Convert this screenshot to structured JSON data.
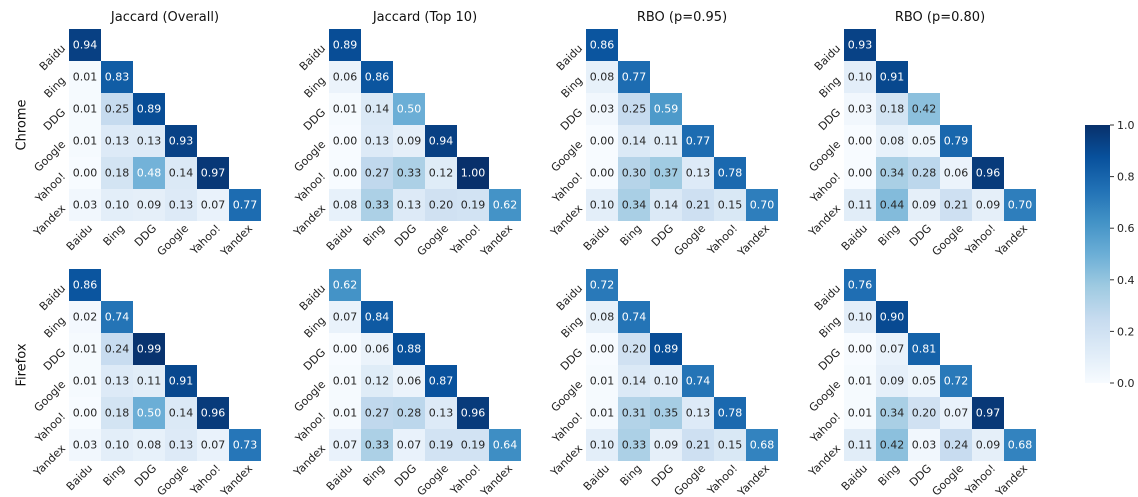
{
  "chart_data": {
    "type": "heatmap",
    "layout": "lower-triangular",
    "row_labels": [
      "Chrome",
      "Firefox"
    ],
    "panel_titles": [
      "Jaccard (Overall)",
      "Jaccard (Top 10)",
      "RBO (p=0.95)",
      "RBO (p=0.80)"
    ],
    "axis_labels": [
      "Baidu",
      "Bing",
      "DDG",
      "Google",
      "Yahoo!",
      "Yandex"
    ],
    "colorbar": {
      "min": 0.0,
      "max": 1.0,
      "ticks": [
        "0.0",
        "0.2",
        "0.4",
        "0.6",
        "0.8",
        "1.0"
      ],
      "colormap": "Blues"
    },
    "panels": [
      [
        [
          [
            0.94
          ],
          [
            0.01,
            0.83
          ],
          [
            0.01,
            0.25,
            0.89
          ],
          [
            0.01,
            0.13,
            0.13,
            0.93
          ],
          [
            0.0,
            0.18,
            0.48,
            0.14,
            0.97
          ],
          [
            0.03,
            0.1,
            0.09,
            0.13,
            0.07,
            0.77
          ]
        ],
        [
          [
            0.89
          ],
          [
            0.06,
            0.86
          ],
          [
            0.01,
            0.14,
            0.5
          ],
          [
            0.0,
            0.13,
            0.09,
            0.94
          ],
          [
            0.0,
            0.27,
            0.33,
            0.12,
            1.0
          ],
          [
            0.08,
            0.33,
            0.13,
            0.2,
            0.19,
            0.62
          ]
        ],
        [
          [
            0.86
          ],
          [
            0.08,
            0.77
          ],
          [
            0.03,
            0.25,
            0.59
          ],
          [
            0.0,
            0.14,
            0.11,
            0.77
          ],
          [
            0.0,
            0.3,
            0.37,
            0.13,
            0.78
          ],
          [
            0.1,
            0.34,
            0.14,
            0.21,
            0.15,
            0.7
          ]
        ],
        [
          [
            0.93
          ],
          [
            0.1,
            0.91
          ],
          [
            0.03,
            0.18,
            0.42
          ],
          [
            0.0,
            0.08,
            0.05,
            0.79
          ],
          [
            0.0,
            0.34,
            0.28,
            0.06,
            0.96
          ],
          [
            0.11,
            0.44,
            0.09,
            0.21,
            0.09,
            0.7
          ]
        ]
      ],
      [
        [
          [
            0.86
          ],
          [
            0.02,
            0.74
          ],
          [
            0.01,
            0.24,
            0.99
          ],
          [
            0.01,
            0.13,
            0.11,
            0.91
          ],
          [
            0.0,
            0.18,
            0.5,
            0.14,
            0.96
          ],
          [
            0.03,
            0.1,
            0.08,
            0.13,
            0.07,
            0.73
          ]
        ],
        [
          [
            0.62
          ],
          [
            0.07,
            0.84
          ],
          [
            0.0,
            0.06,
            0.88
          ],
          [
            0.01,
            0.12,
            0.06,
            0.87
          ],
          [
            0.01,
            0.27,
            0.28,
            0.13,
            0.96
          ],
          [
            0.07,
            0.33,
            0.07,
            0.19,
            0.19,
            0.64
          ]
        ],
        [
          [
            0.72
          ],
          [
            0.08,
            0.74
          ],
          [
            0.0,
            0.2,
            0.89
          ],
          [
            0.01,
            0.14,
            0.1,
            0.74
          ],
          [
            0.01,
            0.31,
            0.35,
            0.13,
            0.78
          ],
          [
            0.1,
            0.33,
            0.09,
            0.21,
            0.15,
            0.68
          ]
        ],
        [
          [
            0.76
          ],
          [
            0.1,
            0.9
          ],
          [
            0.0,
            0.07,
            0.81
          ],
          [
            0.01,
            0.09,
            0.05,
            0.72
          ],
          [
            0.01,
            0.34,
            0.2,
            0.07,
            0.97
          ],
          [
            0.11,
            0.42,
            0.03,
            0.24,
            0.09,
            0.68
          ]
        ]
      ]
    ]
  }
}
